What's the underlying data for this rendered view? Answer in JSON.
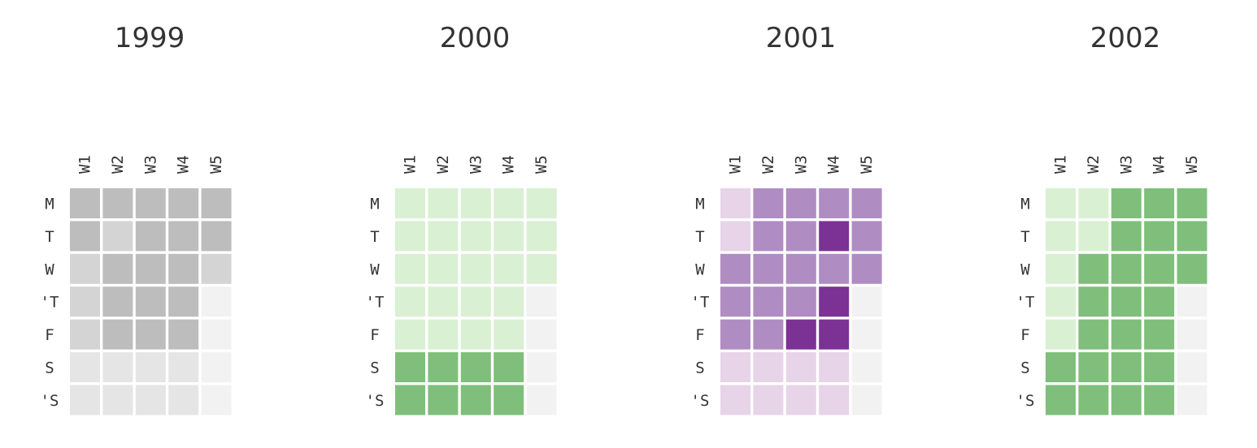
{
  "chart_data": {
    "type": "heatmap",
    "week_labels": [
      "W1",
      "W2",
      "W3",
      "W4",
      "W5"
    ],
    "day_labels": [
      "M",
      "T",
      "W",
      "'T",
      "F",
      "S",
      "'S"
    ],
    "panels": [
      {
        "title": "1999",
        "colors": [
          "#f2f2f2",
          "#e5e5e5",
          "#d4d4d4",
          "#bdbdbd"
        ],
        "levels": [
          [
            3,
            3,
            3,
            3,
            3
          ],
          [
            3,
            2,
            3,
            3,
            3
          ],
          [
            2,
            3,
            3,
            3,
            2
          ],
          [
            2,
            3,
            3,
            3,
            0
          ],
          [
            2,
            3,
            3,
            3,
            0
          ],
          [
            1,
            1,
            1,
            1,
            0
          ],
          [
            1,
            1,
            1,
            1,
            0
          ]
        ]
      },
      {
        "title": "2000",
        "colors": [
          "#f2f2f2",
          "#d9f0d3",
          "#7fbf7b"
        ],
        "levels": [
          [
            1,
            1,
            1,
            1,
            1
          ],
          [
            1,
            1,
            1,
            1,
            1
          ],
          [
            1,
            1,
            1,
            1,
            1
          ],
          [
            1,
            1,
            1,
            1,
            0
          ],
          [
            1,
            1,
            1,
            1,
            0
          ],
          [
            2,
            2,
            2,
            2,
            0
          ],
          [
            2,
            2,
            2,
            2,
            0
          ]
        ]
      },
      {
        "title": "2001",
        "colors": [
          "#f2f2f2",
          "#e7d4e8",
          "#af8dc3",
          "#7b3294"
        ],
        "levels": [
          [
            1,
            2,
            2,
            2,
            2
          ],
          [
            1,
            2,
            2,
            3,
            2
          ],
          [
            2,
            2,
            2,
            2,
            2
          ],
          [
            2,
            2,
            2,
            3,
            0
          ],
          [
            2,
            2,
            3,
            3,
            0
          ],
          [
            1,
            1,
            1,
            1,
            0
          ],
          [
            1,
            1,
            1,
            1,
            0
          ]
        ]
      },
      {
        "title": "2002",
        "colors": [
          "#f2f2f2",
          "#d9f0d3",
          "#7fbf7b"
        ],
        "levels": [
          [
            1,
            1,
            2,
            2,
            2
          ],
          [
            1,
            1,
            2,
            2,
            2
          ],
          [
            1,
            2,
            2,
            2,
            2
          ],
          [
            1,
            2,
            2,
            2,
            0
          ],
          [
            1,
            2,
            2,
            2,
            0
          ],
          [
            2,
            2,
            2,
            2,
            0
          ],
          [
            2,
            2,
            2,
            2,
            0
          ]
        ]
      }
    ]
  }
}
